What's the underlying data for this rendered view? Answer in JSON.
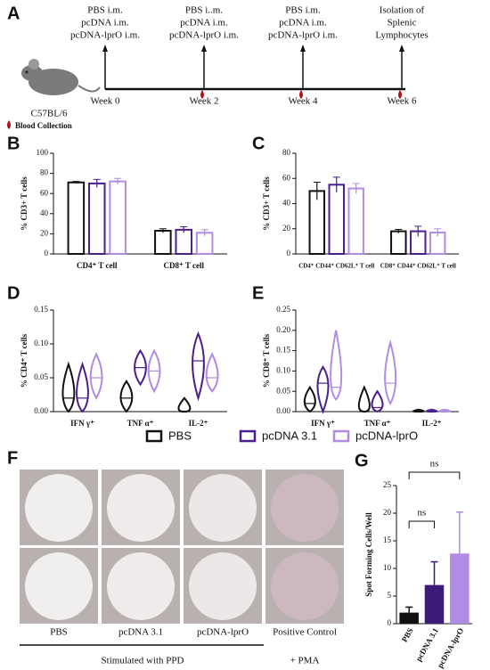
{
  "timeline": {
    "label": "A",
    "steps": [
      {
        "lines": [
          "PBS i.m.",
          "pcDNA i.m.",
          "pcDNA-lprO i.m."
        ],
        "week": "Week 0"
      },
      {
        "lines": [
          "PBS i..m.",
          "pcDNA i.m.",
          "pcDNA-lprO i.m."
        ],
        "week": "Week 2"
      },
      {
        "lines": [
          "PBS i.m.",
          "pcDNA i.m.",
          "pcDNA-lprO i.m."
        ],
        "week": "Week 4"
      },
      {
        "lines": [
          "Isolation of",
          "Splenic",
          "Lymphocytes"
        ],
        "week": "Week 6"
      }
    ],
    "mouse": "C57BL/6",
    "blood": "Blood Collection"
  },
  "wells": {
    "label": "F",
    "columns": [
      "PBS",
      "pcDNA 3.1",
      "pcDNA-lprO",
      "Positive Control"
    ],
    "footer": [
      "Stimulated with PPD",
      "+ PMA"
    ]
  },
  "chart_data": [
    {
      "type": "bar",
      "panel_label": "B",
      "ylabel": "% CD3+ T cells",
      "categories": [
        "CD4⁺ T cell",
        "CD8⁺ T cell"
      ],
      "series": [
        {
          "color": "#111111",
          "values": [
            71,
            23
          ],
          "errors": [
            1,
            2
          ]
        },
        {
          "color": "#4b1f8c",
          "values": [
            70,
            24
          ],
          "errors": [
            4,
            3
          ]
        },
        {
          "color": "#b08ce4",
          "values": [
            72,
            21
          ],
          "errors": [
            3,
            3
          ]
        }
      ],
      "ylim": [
        0,
        100
      ],
      "yticks": [
        0,
        20,
        40,
        60,
        80,
        100
      ]
    },
    {
      "type": "bar",
      "panel_label": "C",
      "ylabel": "% CD3+ T cells",
      "categories": [
        "CD4⁺ CD44⁺ CD62L⁺ T cell",
        "CD8⁺ CD44⁺ CD62L⁺ T cell"
      ],
      "series": [
        {
          "color": "#111111",
          "values": [
            50,
            18
          ],
          "errors": [
            7,
            1.5
          ]
        },
        {
          "color": "#4b1f8c",
          "values": [
            55,
            18
          ],
          "errors": [
            6,
            4
          ]
        },
        {
          "color": "#b08ce4",
          "values": [
            52,
            17
          ],
          "errors": [
            4,
            3
          ]
        }
      ],
      "ylim": [
        0,
        80
      ],
      "yticks": [
        0,
        20,
        40,
        60,
        80
      ]
    },
    {
      "type": "violin",
      "panel_label": "D",
      "ylabel": "% CD4⁺ T cells",
      "categories": [
        "IFN γ⁺",
        "TNF α⁺",
        "IL-2⁺"
      ],
      "series": [
        {
          "name": "PBS",
          "color": "#111111",
          "values": [
            {
              "min": 0,
              "median": 0.02,
              "max": 0.07
            },
            {
              "min": 0,
              "median": 0.02,
              "max": 0.045
            },
            {
              "min": 0,
              "median": 0.0,
              "max": 0.02
            }
          ]
        },
        {
          "name": "pcDNA 3.1",
          "color": "#4b1f8c",
          "values": [
            {
              "min": 0,
              "median": 0.02,
              "max": 0.07
            },
            {
              "min": 0.04,
              "median": 0.065,
              "max": 0.09
            },
            {
              "min": 0.02,
              "median": 0.075,
              "max": 0.115
            }
          ]
        },
        {
          "name": "pcDNA-lprO",
          "color": "#b08ce4",
          "values": [
            {
              "min": 0.02,
              "median": 0.05,
              "max": 0.085
            },
            {
              "min": 0.03,
              "median": 0.06,
              "max": 0.09
            },
            {
              "min": 0.03,
              "median": 0.05,
              "max": 0.085
            }
          ]
        }
      ],
      "ylim": [
        0,
        0.15
      ],
      "yticks": [
        {
          "value": 0,
          "label": "0.00"
        },
        {
          "value": 0.05,
          "label": "0.05"
        },
        {
          "value": 0.1,
          "label": "0.10"
        },
        {
          "value": 0.15,
          "label": "0.15"
        }
      ]
    },
    {
      "type": "violin",
      "panel_label": "E",
      "ylabel": "% CD8⁺ T cells",
      "categories": [
        "IFN γ⁺",
        "TNF α⁺",
        "IL-2⁺"
      ],
      "series": [
        {
          "color": "#111111",
          "values": [
            {
              "min": 0,
              "median": 0.02,
              "max": 0.06
            },
            {
              "min": 0,
              "median": 0.0,
              "max": 0.06
            },
            {
              "min": 0,
              "median": 0,
              "max": 0.005
            }
          ]
        },
        {
          "color": "#4b1f8c",
          "values": [
            {
              "min": 0,
              "median": 0.07,
              "max": 0.11
            },
            {
              "min": 0,
              "median": 0.01,
              "max": 0.05
            },
            {
              "min": 0,
              "median": 0,
              "max": 0.005
            }
          ]
        },
        {
          "color": "#b08ce4",
          "values": [
            {
              "min": 0.03,
              "median": 0.06,
              "max": 0.2
            },
            {
              "min": 0.02,
              "median": 0.07,
              "max": 0.17
            },
            {
              "min": 0,
              "median": 0,
              "max": 0.005
            }
          ]
        }
      ],
      "ylim": [
        0,
        0.25
      ],
      "yticks": [
        {
          "value": 0,
          "label": "0.00"
        },
        {
          "value": 0.05,
          "label": "0.05"
        },
        {
          "value": 0.1,
          "label": "0.10"
        },
        {
          "value": 0.15,
          "label": "0.15"
        },
        {
          "value": 0.2,
          "label": "0.20"
        },
        {
          "value": 0.25,
          "label": "0.25"
        }
      ]
    },
    {
      "type": "simplebar",
      "panel_label": "G",
      "ylabel": "Spot Forming Cells/Well",
      "categories": [
        "PBS",
        "pcDNA 3.1",
        "pcDNA-lprO"
      ],
      "values": [
        2,
        7,
        12.7
      ],
      "errors": [
        1,
        4.2,
        7.5
      ],
      "colors": [
        "#111111",
        "#3d1a78",
        "#b08ce4"
      ],
      "annotations": [
        "ns",
        "ns"
      ],
      "ylim": [
        0,
        25
      ],
      "yticks": [
        0,
        5,
        10,
        15,
        20,
        25
      ]
    }
  ]
}
